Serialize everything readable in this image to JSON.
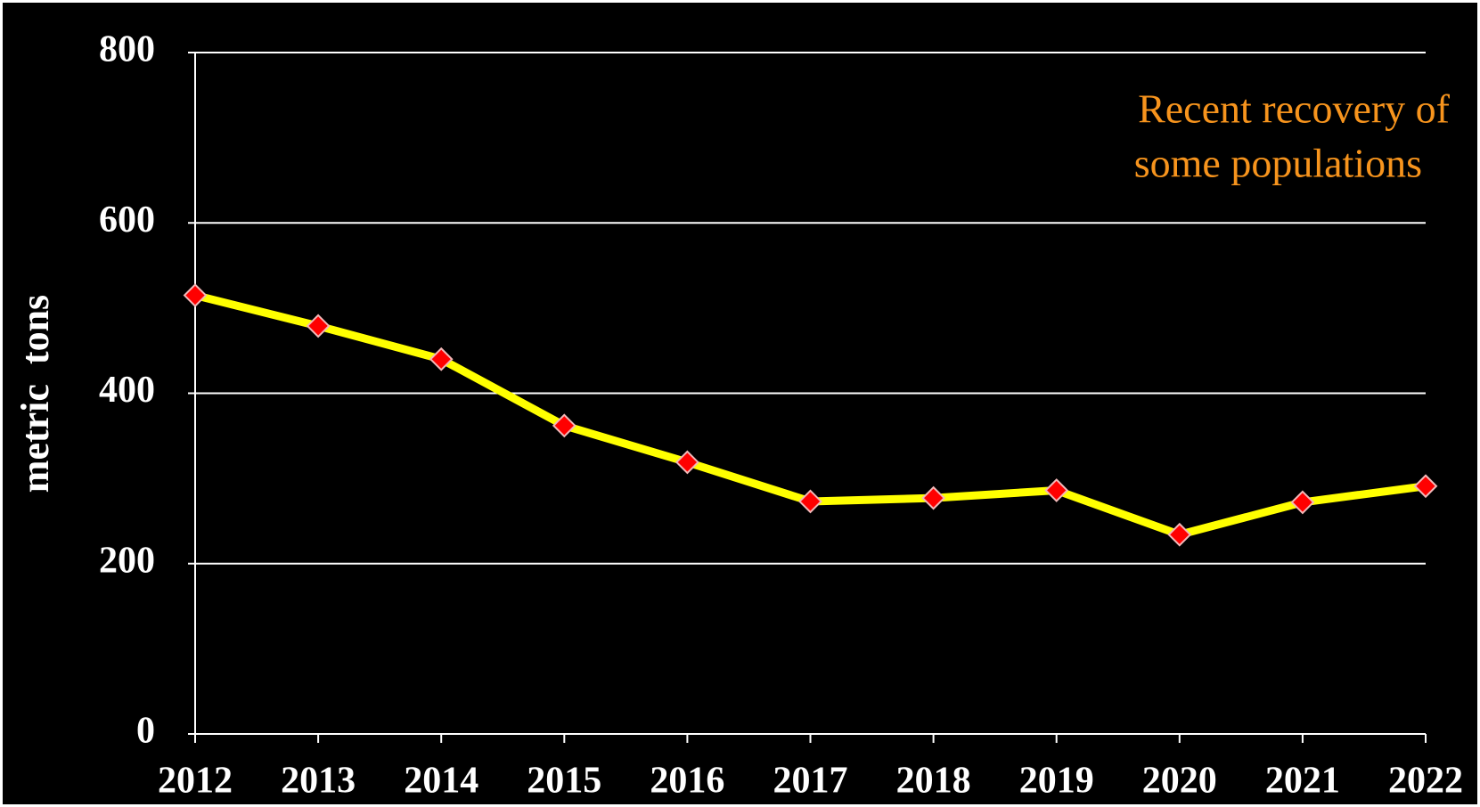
{
  "chart_data": {
    "type": "line",
    "y_label": "metric  tons",
    "annotation": [
      "Recent recovery of",
      "some populations"
    ],
    "categories": [
      "2012",
      "2013",
      "2014",
      "2015",
      "2016",
      "2017",
      "2018",
      "2019",
      "2020",
      "2021",
      "2022"
    ],
    "series": [
      {
        "color": "#ffff00",
        "marker_color": "#ff0000",
        "values": [
          515,
          479,
          440,
          362,
          319,
          273,
          277,
          286,
          234,
          272,
          291
        ]
      }
    ],
    "ylim": [
      0,
      800
    ],
    "yticks": [
      0,
      200,
      400,
      600,
      800
    ],
    "grid": true
  }
}
